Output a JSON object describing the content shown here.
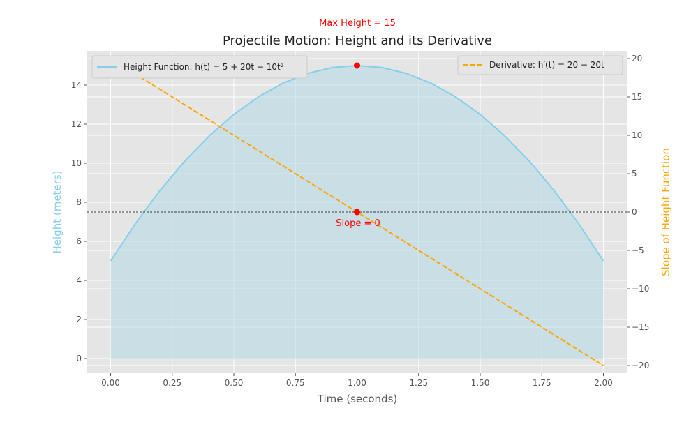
{
  "chart_data": {
    "type": "line",
    "title": "Projectile Motion: Height and its Derivative",
    "xlabel": "Time (seconds)",
    "ylabel_left": "Height (meters)",
    "ylabel_right": "Slope of Height Function",
    "xlim": [
      -0.095,
      2.095
    ],
    "ylim_left": [
      -0.75,
      15.75
    ],
    "ylim_right": [
      -21.0,
      21.0
    ],
    "x_ticks": [
      0.0,
      0.25,
      0.5,
      0.75,
      1.0,
      1.25,
      1.5,
      1.75,
      2.0
    ],
    "x_tick_labels": [
      "0.00",
      "0.25",
      "0.50",
      "0.75",
      "1.00",
      "1.25",
      "1.50",
      "1.75",
      "2.00"
    ],
    "y_left_ticks": [
      0,
      2,
      4,
      6,
      8,
      10,
      12,
      14
    ],
    "y_left_tick_labels": [
      "0",
      "2",
      "4",
      "6",
      "8",
      "10",
      "12",
      "14"
    ],
    "y_right_ticks": [
      -20,
      -15,
      -10,
      -5,
      0,
      5,
      10,
      15,
      20
    ],
    "y_right_tick_labels": [
      "−20",
      "−15",
      "−10",
      "−5",
      "0",
      "5",
      "10",
      "15",
      "20"
    ],
    "grid": true,
    "series": [
      {
        "name": "Height Function",
        "legend_label": "Height Function: h(t) = 5 + 20t − 10t²",
        "axis": "left",
        "color": "#87ceeb",
        "fill": "#add8e6",
        "style": "solid",
        "x": [
          0.0,
          0.1,
          0.2,
          0.3,
          0.4,
          0.5,
          0.6,
          0.7,
          0.8,
          0.9,
          1.0,
          1.1,
          1.2,
          1.3,
          1.4,
          1.5,
          1.6,
          1.7,
          1.8,
          1.9,
          2.0
        ],
        "y": [
          5.0,
          6.9,
          8.6,
          10.1,
          11.4,
          12.5,
          13.4,
          14.1,
          14.6,
          14.9,
          15.0,
          14.9,
          14.6,
          14.1,
          13.4,
          12.5,
          11.4,
          10.1,
          8.6,
          6.9,
          5.0
        ]
      },
      {
        "name": "Derivative",
        "legend_label": "Derivative: h′(t) = 20 − 20t",
        "axis": "right",
        "color": "#ffa500",
        "style": "dashed",
        "x": [
          0.0,
          2.0
        ],
        "y": [
          20.0,
          -20.0
        ]
      }
    ],
    "reference_line": {
      "axis": "right",
      "y": 0,
      "color": "#000000",
      "style": "dashed"
    },
    "points": [
      {
        "name": "max-height-point",
        "axis": "left",
        "x": 1.0,
        "y": 15.0,
        "color": "#ff0000"
      },
      {
        "name": "zero-slope-point",
        "axis": "right",
        "x": 1.0,
        "y": 0.0,
        "color": "#ff0000"
      }
    ],
    "annotations": [
      {
        "name": "max-height-annotation",
        "text": "Max Height = 15",
        "color": "#ff0000"
      },
      {
        "name": "slope-annotation",
        "text": "Slope = 0",
        "color": "#ff0000"
      }
    ],
    "legend_left_placement": "upper-left",
    "legend_right_placement": "upper-right"
  }
}
